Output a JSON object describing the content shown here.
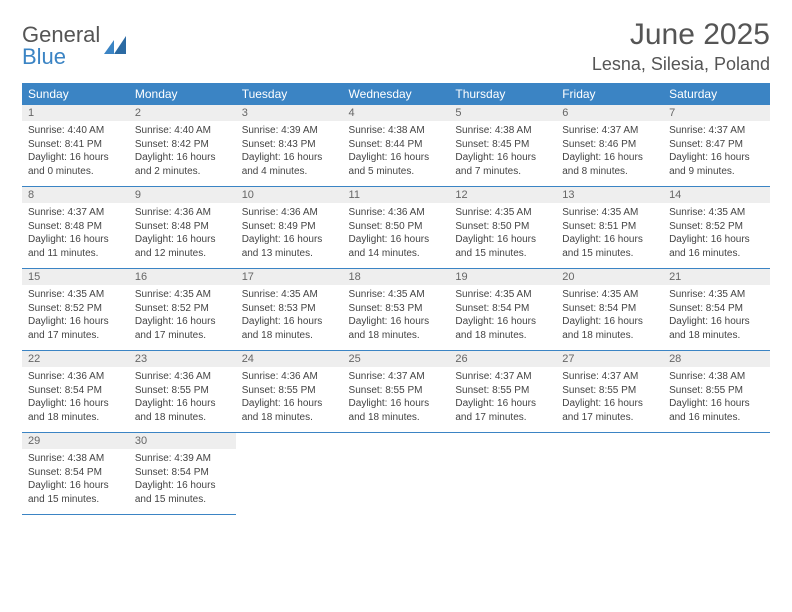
{
  "brand": {
    "part1": "General",
    "part2": "Blue"
  },
  "title": "June 2025",
  "location": "Lesna, Silesia, Poland",
  "colors": {
    "header_bg": "#3b84c4",
    "header_text": "#ffffff",
    "daynum_bg": "#eeeeee",
    "body_text": "#444444",
    "title_text": "#555555",
    "row_border": "#3b84c4"
  },
  "fonts": {
    "title_size": 30,
    "location_size": 18,
    "weekday_size": 12,
    "cell_size": 10
  },
  "weekdays": [
    "Sunday",
    "Monday",
    "Tuesday",
    "Wednesday",
    "Thursday",
    "Friday",
    "Saturday"
  ],
  "days": [
    {
      "n": 1,
      "sunrise": "4:40 AM",
      "sunset": "8:41 PM",
      "daylight": "16 hours and 0 minutes."
    },
    {
      "n": 2,
      "sunrise": "4:40 AM",
      "sunset": "8:42 PM",
      "daylight": "16 hours and 2 minutes."
    },
    {
      "n": 3,
      "sunrise": "4:39 AM",
      "sunset": "8:43 PM",
      "daylight": "16 hours and 4 minutes."
    },
    {
      "n": 4,
      "sunrise": "4:38 AM",
      "sunset": "8:44 PM",
      "daylight": "16 hours and 5 minutes."
    },
    {
      "n": 5,
      "sunrise": "4:38 AM",
      "sunset": "8:45 PM",
      "daylight": "16 hours and 7 minutes."
    },
    {
      "n": 6,
      "sunrise": "4:37 AM",
      "sunset": "8:46 PM",
      "daylight": "16 hours and 8 minutes."
    },
    {
      "n": 7,
      "sunrise": "4:37 AM",
      "sunset": "8:47 PM",
      "daylight": "16 hours and 9 minutes."
    },
    {
      "n": 8,
      "sunrise": "4:37 AM",
      "sunset": "8:48 PM",
      "daylight": "16 hours and 11 minutes."
    },
    {
      "n": 9,
      "sunrise": "4:36 AM",
      "sunset": "8:48 PM",
      "daylight": "16 hours and 12 minutes."
    },
    {
      "n": 10,
      "sunrise": "4:36 AM",
      "sunset": "8:49 PM",
      "daylight": "16 hours and 13 minutes."
    },
    {
      "n": 11,
      "sunrise": "4:36 AM",
      "sunset": "8:50 PM",
      "daylight": "16 hours and 14 minutes."
    },
    {
      "n": 12,
      "sunrise": "4:35 AM",
      "sunset": "8:50 PM",
      "daylight": "16 hours and 15 minutes."
    },
    {
      "n": 13,
      "sunrise": "4:35 AM",
      "sunset": "8:51 PM",
      "daylight": "16 hours and 15 minutes."
    },
    {
      "n": 14,
      "sunrise": "4:35 AM",
      "sunset": "8:52 PM",
      "daylight": "16 hours and 16 minutes."
    },
    {
      "n": 15,
      "sunrise": "4:35 AM",
      "sunset": "8:52 PM",
      "daylight": "16 hours and 17 minutes."
    },
    {
      "n": 16,
      "sunrise": "4:35 AM",
      "sunset": "8:52 PM",
      "daylight": "16 hours and 17 minutes."
    },
    {
      "n": 17,
      "sunrise": "4:35 AM",
      "sunset": "8:53 PM",
      "daylight": "16 hours and 18 minutes."
    },
    {
      "n": 18,
      "sunrise": "4:35 AM",
      "sunset": "8:53 PM",
      "daylight": "16 hours and 18 minutes."
    },
    {
      "n": 19,
      "sunrise": "4:35 AM",
      "sunset": "8:54 PM",
      "daylight": "16 hours and 18 minutes."
    },
    {
      "n": 20,
      "sunrise": "4:35 AM",
      "sunset": "8:54 PM",
      "daylight": "16 hours and 18 minutes."
    },
    {
      "n": 21,
      "sunrise": "4:35 AM",
      "sunset": "8:54 PM",
      "daylight": "16 hours and 18 minutes."
    },
    {
      "n": 22,
      "sunrise": "4:36 AM",
      "sunset": "8:54 PM",
      "daylight": "16 hours and 18 minutes."
    },
    {
      "n": 23,
      "sunrise": "4:36 AM",
      "sunset": "8:55 PM",
      "daylight": "16 hours and 18 minutes."
    },
    {
      "n": 24,
      "sunrise": "4:36 AM",
      "sunset": "8:55 PM",
      "daylight": "16 hours and 18 minutes."
    },
    {
      "n": 25,
      "sunrise": "4:37 AM",
      "sunset": "8:55 PM",
      "daylight": "16 hours and 18 minutes."
    },
    {
      "n": 26,
      "sunrise": "4:37 AM",
      "sunset": "8:55 PM",
      "daylight": "16 hours and 17 minutes."
    },
    {
      "n": 27,
      "sunrise": "4:37 AM",
      "sunset": "8:55 PM",
      "daylight": "16 hours and 17 minutes."
    },
    {
      "n": 28,
      "sunrise": "4:38 AM",
      "sunset": "8:55 PM",
      "daylight": "16 hours and 16 minutes."
    },
    {
      "n": 29,
      "sunrise": "4:38 AM",
      "sunset": "8:54 PM",
      "daylight": "16 hours and 15 minutes."
    },
    {
      "n": 30,
      "sunrise": "4:39 AM",
      "sunset": "8:54 PM",
      "daylight": "16 hours and 15 minutes."
    }
  ],
  "labels": {
    "sunrise": "Sunrise: ",
    "sunset": "Sunset: ",
    "daylight": "Daylight: "
  },
  "grid": {
    "start_weekday": 0,
    "rows": 5,
    "cols": 7
  }
}
